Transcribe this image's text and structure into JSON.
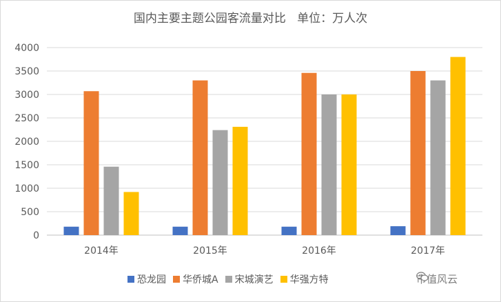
{
  "chart_data": {
    "type": "bar",
    "title": "国内主要主题公园客流量对比   单位：万人次",
    "categories": [
      "2014年",
      "2015年",
      "2016年",
      "2017年"
    ],
    "series": [
      {
        "name": "恐龙园",
        "color": "#4472C4",
        "values": [
          180,
          180,
          180,
          190
        ]
      },
      {
        "name": "华侨城A",
        "color": "#ED7D31",
        "values": [
          3070,
          3300,
          3460,
          3500
        ]
      },
      {
        "name": "宋城演艺",
        "color": "#A5A5A5",
        "values": [
          1460,
          2240,
          3000,
          3300
        ]
      },
      {
        "name": "华强方特",
        "color": "#FFC000",
        "values": [
          920,
          2310,
          3000,
          3800
        ]
      }
    ],
    "ylim": [
      0,
      4000
    ],
    "yticks": [
      "0",
      "500",
      "1000",
      "1500",
      "2000",
      "2500",
      "3000",
      "3500",
      "4000"
    ],
    "grid": true,
    "legend": "bottom"
  },
  "watermark": {
    "text": "市值风云",
    "icon": "wechat-icon"
  }
}
